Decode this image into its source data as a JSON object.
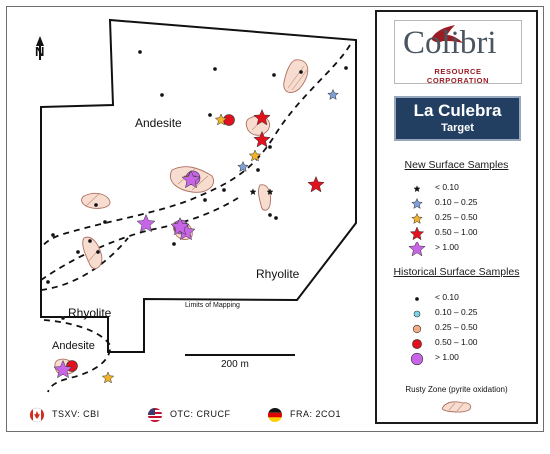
{
  "north_label": "N",
  "map_labels": {
    "andesite_north": "Andesite",
    "rhyolite_east": "Rhyolite",
    "rhyolite_southwest": "Rhyolite",
    "andesite_south": "Andesite",
    "limits": "Limits of Mapping"
  },
  "scale_bar": {
    "label": "200 m"
  },
  "logo": {
    "word": "Colibri",
    "tagline": "RESOURCE CORPORATION"
  },
  "target": {
    "title": "La Culebra",
    "subtitle": "Target"
  },
  "legend": {
    "new_title": "New Surface Samples",
    "new_items": [
      {
        "label": "< 0.10",
        "color": "#111111",
        "size": "tiny"
      },
      {
        "label": "0.10 – 0.25",
        "color": "#7f9fd9",
        "size": "small"
      },
      {
        "label": "0.25 – 0.50",
        "color": "#f2b229",
        "size": "small"
      },
      {
        "label": "0.50 – 1.00",
        "color": "#e0121d",
        "size": "medium"
      },
      {
        "label": "> 1.00",
        "color": "#c865e6",
        "size": "large"
      }
    ],
    "hist_title": "Historical Surface Samples",
    "hist_items": [
      {
        "label": "< 0.10",
        "color": "#111111"
      },
      {
        "label": "0.10 – 0.25",
        "color": "#7fd4ea"
      },
      {
        "label": "0.25 – 0.50",
        "color": "#f2aa84"
      },
      {
        "label": "0.50 – 1.00",
        "color": "#e0121d"
      },
      {
        "label": "> 1.00",
        "color": "#c865e6"
      }
    ],
    "rusty_label": "Rusty Zone (pyrite oxidation)"
  },
  "footer": [
    {
      "label": "TSXV: CBI",
      "flag": "canada-flag"
    },
    {
      "label": "OTC: CRUCF",
      "flag": "usa-flag"
    },
    {
      "label": "FRA: 2CO1",
      "flag": "germany-flag"
    }
  ],
  "colors": {
    "navy": "#223f62",
    "boundary": "#111111",
    "rusty_fill": "#f7dcd0",
    "rusty_line": "#b07060"
  }
}
